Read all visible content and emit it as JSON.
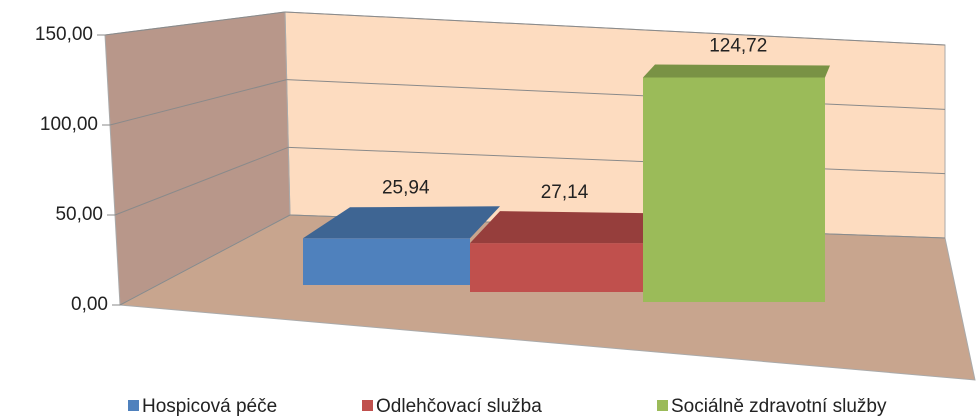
{
  "chart_data": {
    "type": "bar3d",
    "categories": [
      null
    ],
    "series": [
      {
        "name": "Hospicová péče",
        "color": "#4f81bd",
        "values": [
          25.94
        ],
        "value_labels": [
          "25,94"
        ]
      },
      {
        "name": "Odlehčovací služba",
        "color": "#c0504d",
        "values": [
          27.14
        ],
        "value_labels": [
          "27,14"
        ]
      },
      {
        "name": "Sociálně zdravotní služby",
        "color": "#9bbb59",
        "values": [
          124.72
        ],
        "value_labels": [
          "124,72"
        ]
      }
    ],
    "ylim": [
      0,
      150
    ],
    "yticks": [
      {
        "value": 0,
        "label": "0,00"
      },
      {
        "value": 50,
        "label": "50,00"
      },
      {
        "value": 100,
        "label": "100,00"
      },
      {
        "value": 150,
        "label": "150,00"
      }
    ],
    "grid": true,
    "legend": "bottom"
  }
}
